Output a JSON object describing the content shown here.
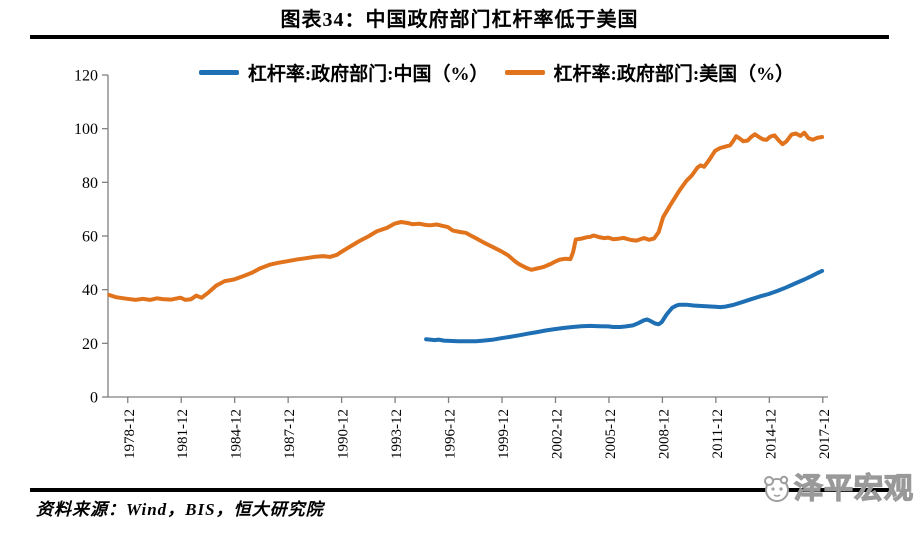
{
  "header": {
    "title": "图表34：中国政府部门杠杆率低于美国"
  },
  "footer": {
    "source": "资料来源：Wind，BIS，恒大研究院",
    "watermark_text": "泽平宏观",
    "watermark_logo": "panda-logo-icon"
  },
  "chart_data": {
    "type": "line",
    "title": "图表34：中国政府部门杠杆率低于美国",
    "xlabel": "",
    "ylabel": "",
    "ylim": [
      0,
      120
    ],
    "yticks": [
      0,
      20,
      40,
      60,
      80,
      100,
      120
    ],
    "xtick_labels": [
      "1978-12",
      "1981-12",
      "1984-12",
      "1987-12",
      "1990-12",
      "1993-12",
      "1996-12",
      "1999-12",
      "2002-12",
      "2005-12",
      "2008-12",
      "2011-12",
      "2014-12",
      "2017-12"
    ],
    "x_range_years": [
      1977.85,
      2018.25
    ],
    "grid": false,
    "legend_position": "top",
    "axis_color": "#808080",
    "series": [
      {
        "name": "杠杆率:政府部门:中国（%）",
        "color": "#1F6FB4",
        "points": [
          [
            1995.7,
            21.5
          ],
          [
            1995.92,
            21.4
          ],
          [
            1996.2,
            21.2
          ],
          [
            1996.4,
            21.4
          ],
          [
            1996.7,
            21.0
          ],
          [
            1997.0,
            20.9
          ],
          [
            1997.5,
            20.8
          ],
          [
            1997.92,
            20.8
          ],
          [
            1998.5,
            20.8
          ],
          [
            1998.92,
            21.0
          ],
          [
            1999.4,
            21.3
          ],
          [
            1999.92,
            21.9
          ],
          [
            2000.4,
            22.4
          ],
          [
            2000.92,
            23.0
          ],
          [
            2001.4,
            23.6
          ],
          [
            2001.92,
            24.2
          ],
          [
            2002.4,
            24.8
          ],
          [
            2002.92,
            25.3
          ],
          [
            2003.4,
            25.7
          ],
          [
            2003.92,
            26.1
          ],
          [
            2004.4,
            26.4
          ],
          [
            2004.92,
            26.5
          ],
          [
            2005.4,
            26.4
          ],
          [
            2005.92,
            26.3
          ],
          [
            2006.2,
            26.1
          ],
          [
            2006.6,
            26.1
          ],
          [
            2006.92,
            26.3
          ],
          [
            2007.3,
            26.7
          ],
          [
            2007.6,
            27.5
          ],
          [
            2007.92,
            28.6
          ],
          [
            2008.1,
            28.9
          ],
          [
            2008.3,
            28.3
          ],
          [
            2008.55,
            27.4
          ],
          [
            2008.75,
            27.1
          ],
          [
            2008.92,
            27.9
          ],
          [
            2009.2,
            30.8
          ],
          [
            2009.5,
            33.2
          ],
          [
            2009.75,
            34.1
          ],
          [
            2009.92,
            34.4
          ],
          [
            2010.3,
            34.4
          ],
          [
            2010.7,
            34.1
          ],
          [
            2010.92,
            34.0
          ],
          [
            2011.4,
            33.8
          ],
          [
            2011.92,
            33.6
          ],
          [
            2012.2,
            33.5
          ],
          [
            2012.5,
            33.7
          ],
          [
            2012.92,
            34.3
          ],
          [
            2013.4,
            35.3
          ],
          [
            2013.92,
            36.4
          ],
          [
            2014.4,
            37.4
          ],
          [
            2014.92,
            38.4
          ],
          [
            2015.4,
            39.5
          ],
          [
            2015.92,
            40.9
          ],
          [
            2016.4,
            42.3
          ],
          [
            2016.92,
            43.8
          ],
          [
            2017.3,
            45.0
          ],
          [
            2017.6,
            46.0
          ],
          [
            2017.92,
            47.0
          ]
        ]
      },
      {
        "name": "杠杆率:政府部门:美国（%）",
        "color": "#E1731D",
        "points": [
          [
            1977.92,
            38.0
          ],
          [
            1978.3,
            37.2
          ],
          [
            1978.92,
            36.6
          ],
          [
            1979.4,
            36.2
          ],
          [
            1979.8,
            36.6
          ],
          [
            1980.2,
            36.2
          ],
          [
            1980.6,
            36.8
          ],
          [
            1980.92,
            36.5
          ],
          [
            1981.4,
            36.3
          ],
          [
            1981.92,
            37.0
          ],
          [
            1982.2,
            36.2
          ],
          [
            1982.5,
            36.4
          ],
          [
            1982.8,
            37.8
          ],
          [
            1983.1,
            37.0
          ],
          [
            1983.5,
            39.0
          ],
          [
            1983.92,
            41.5
          ],
          [
            1984.4,
            43.2
          ],
          [
            1984.92,
            43.8
          ],
          [
            1985.5,
            45.2
          ],
          [
            1985.92,
            46.3
          ],
          [
            1986.4,
            48.0
          ],
          [
            1986.92,
            49.3
          ],
          [
            1987.4,
            50.0
          ],
          [
            1987.92,
            50.6
          ],
          [
            1988.5,
            51.3
          ],
          [
            1988.92,
            51.7
          ],
          [
            1989.5,
            52.3
          ],
          [
            1989.92,
            52.5
          ],
          [
            1990.3,
            52.2
          ],
          [
            1990.7,
            53.0
          ],
          [
            1990.92,
            54.0
          ],
          [
            1991.5,
            56.3
          ],
          [
            1991.92,
            58.0
          ],
          [
            1992.5,
            60.0
          ],
          [
            1992.92,
            61.7
          ],
          [
            1993.5,
            63.0
          ],
          [
            1993.92,
            64.6
          ],
          [
            1994.3,
            65.2
          ],
          [
            1994.7,
            64.8
          ],
          [
            1994.92,
            64.4
          ],
          [
            1995.3,
            64.6
          ],
          [
            1995.7,
            64.1
          ],
          [
            1995.92,
            64.0
          ],
          [
            1996.3,
            64.3
          ],
          [
            1996.6,
            63.8
          ],
          [
            1996.92,
            63.3
          ],
          [
            1997.2,
            62.0
          ],
          [
            1997.6,
            61.5
          ],
          [
            1997.92,
            61.2
          ],
          [
            1998.2,
            60.2
          ],
          [
            1998.6,
            58.8
          ],
          [
            1998.92,
            57.6
          ],
          [
            1999.4,
            56.0
          ],
          [
            1999.92,
            54.3
          ],
          [
            2000.3,
            52.8
          ],
          [
            2000.7,
            50.5
          ],
          [
            2000.92,
            49.5
          ],
          [
            2001.3,
            48.2
          ],
          [
            2001.6,
            47.4
          ],
          [
            2001.92,
            47.9
          ],
          [
            2002.3,
            48.5
          ],
          [
            2002.7,
            49.6
          ],
          [
            2002.92,
            50.4
          ],
          [
            2003.2,
            51.2
          ],
          [
            2003.5,
            51.5
          ],
          [
            2003.8,
            51.4
          ],
          [
            2003.95,
            54.0
          ],
          [
            2004.1,
            58.7
          ],
          [
            2004.4,
            59.0
          ],
          [
            2004.7,
            59.5
          ],
          [
            2004.92,
            59.7
          ],
          [
            2005.1,
            60.2
          ],
          [
            2005.4,
            59.6
          ],
          [
            2005.7,
            59.2
          ],
          [
            2005.92,
            59.4
          ],
          [
            2006.2,
            58.8
          ],
          [
            2006.5,
            59.0
          ],
          [
            2006.8,
            59.3
          ],
          [
            2006.92,
            59.0
          ],
          [
            2007.2,
            58.5
          ],
          [
            2007.5,
            58.3
          ],
          [
            2007.8,
            59.0
          ],
          [
            2007.95,
            59.2
          ],
          [
            2008.2,
            58.6
          ],
          [
            2008.5,
            59.1
          ],
          [
            2008.75,
            61.5
          ],
          [
            2009.0,
            67.0
          ],
          [
            2009.4,
            71.5
          ],
          [
            2009.92,
            77.0
          ],
          [
            2010.3,
            80.5
          ],
          [
            2010.6,
            82.5
          ],
          [
            2010.92,
            85.5
          ],
          [
            2011.1,
            86.3
          ],
          [
            2011.3,
            85.8
          ],
          [
            2011.6,
            88.5
          ],
          [
            2011.92,
            91.8
          ],
          [
            2012.2,
            92.8
          ],
          [
            2012.5,
            93.3
          ],
          [
            2012.75,
            93.8
          ],
          [
            2012.92,
            95.3
          ],
          [
            2013.1,
            97.2
          ],
          [
            2013.3,
            96.3
          ],
          [
            2013.5,
            95.3
          ],
          [
            2013.75,
            95.6
          ],
          [
            2013.92,
            96.8
          ],
          [
            2014.15,
            97.9
          ],
          [
            2014.4,
            96.8
          ],
          [
            2014.6,
            96.0
          ],
          [
            2014.8,
            95.8
          ],
          [
            2015.0,
            97.0
          ],
          [
            2015.25,
            97.5
          ],
          [
            2015.5,
            95.5
          ],
          [
            2015.7,
            94.2
          ],
          [
            2015.92,
            95.3
          ],
          [
            2016.2,
            97.8
          ],
          [
            2016.45,
            98.2
          ],
          [
            2016.7,
            97.3
          ],
          [
            2016.92,
            98.5
          ],
          [
            2017.15,
            96.5
          ],
          [
            2017.4,
            95.9
          ],
          [
            2017.65,
            96.6
          ],
          [
            2017.92,
            96.9
          ]
        ]
      }
    ]
  }
}
